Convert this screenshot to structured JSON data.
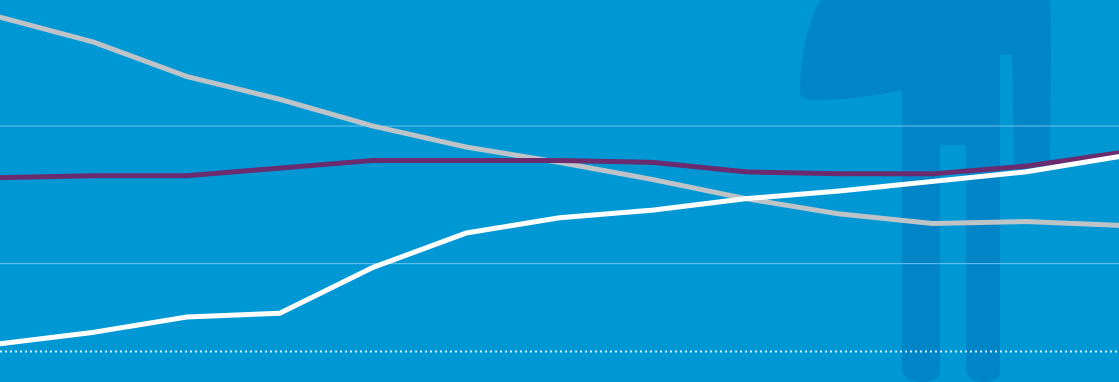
{
  "colors": {
    "background": "#0098d4",
    "figure": "#0085c8",
    "gridline": "#6fc3ea",
    "baseline_dotted": "#d9eef9",
    "series_gray": "#bdc3c7",
    "series_purple": "#6a2c6e",
    "series_white": "#ffffff"
  },
  "decoration": {
    "icon": "standing-person-icon"
  },
  "chart_data": {
    "type": "line",
    "title": "",
    "xlabel": "",
    "ylabel": "",
    "x": [
      0,
      1,
      2,
      3,
      4,
      5,
      6,
      7,
      8,
      9,
      10,
      11,
      12
    ],
    "xlim": [
      0,
      12
    ],
    "ylim": [
      0,
      100
    ],
    "grid": true,
    "gridlines_y": [
      31,
      67
    ],
    "baseline_dotted_y": 8,
    "series": [
      {
        "key": "gray",
        "values": [
          95.5,
          89,
          80,
          74,
          67,
          61.5,
          57.5,
          53,
          48,
          44,
          41.5,
          42,
          41
        ]
      },
      {
        "key": "purple",
        "values": [
          53.5,
          54,
          54,
          56,
          58,
          58,
          58,
          57.5,
          55,
          54.5,
          54.5,
          56.5,
          60
        ]
      },
      {
        "key": "white",
        "values": [
          10,
          13,
          17,
          18,
          30,
          39,
          43,
          45,
          48,
          50,
          52.5,
          55,
          59
        ]
      }
    ]
  }
}
